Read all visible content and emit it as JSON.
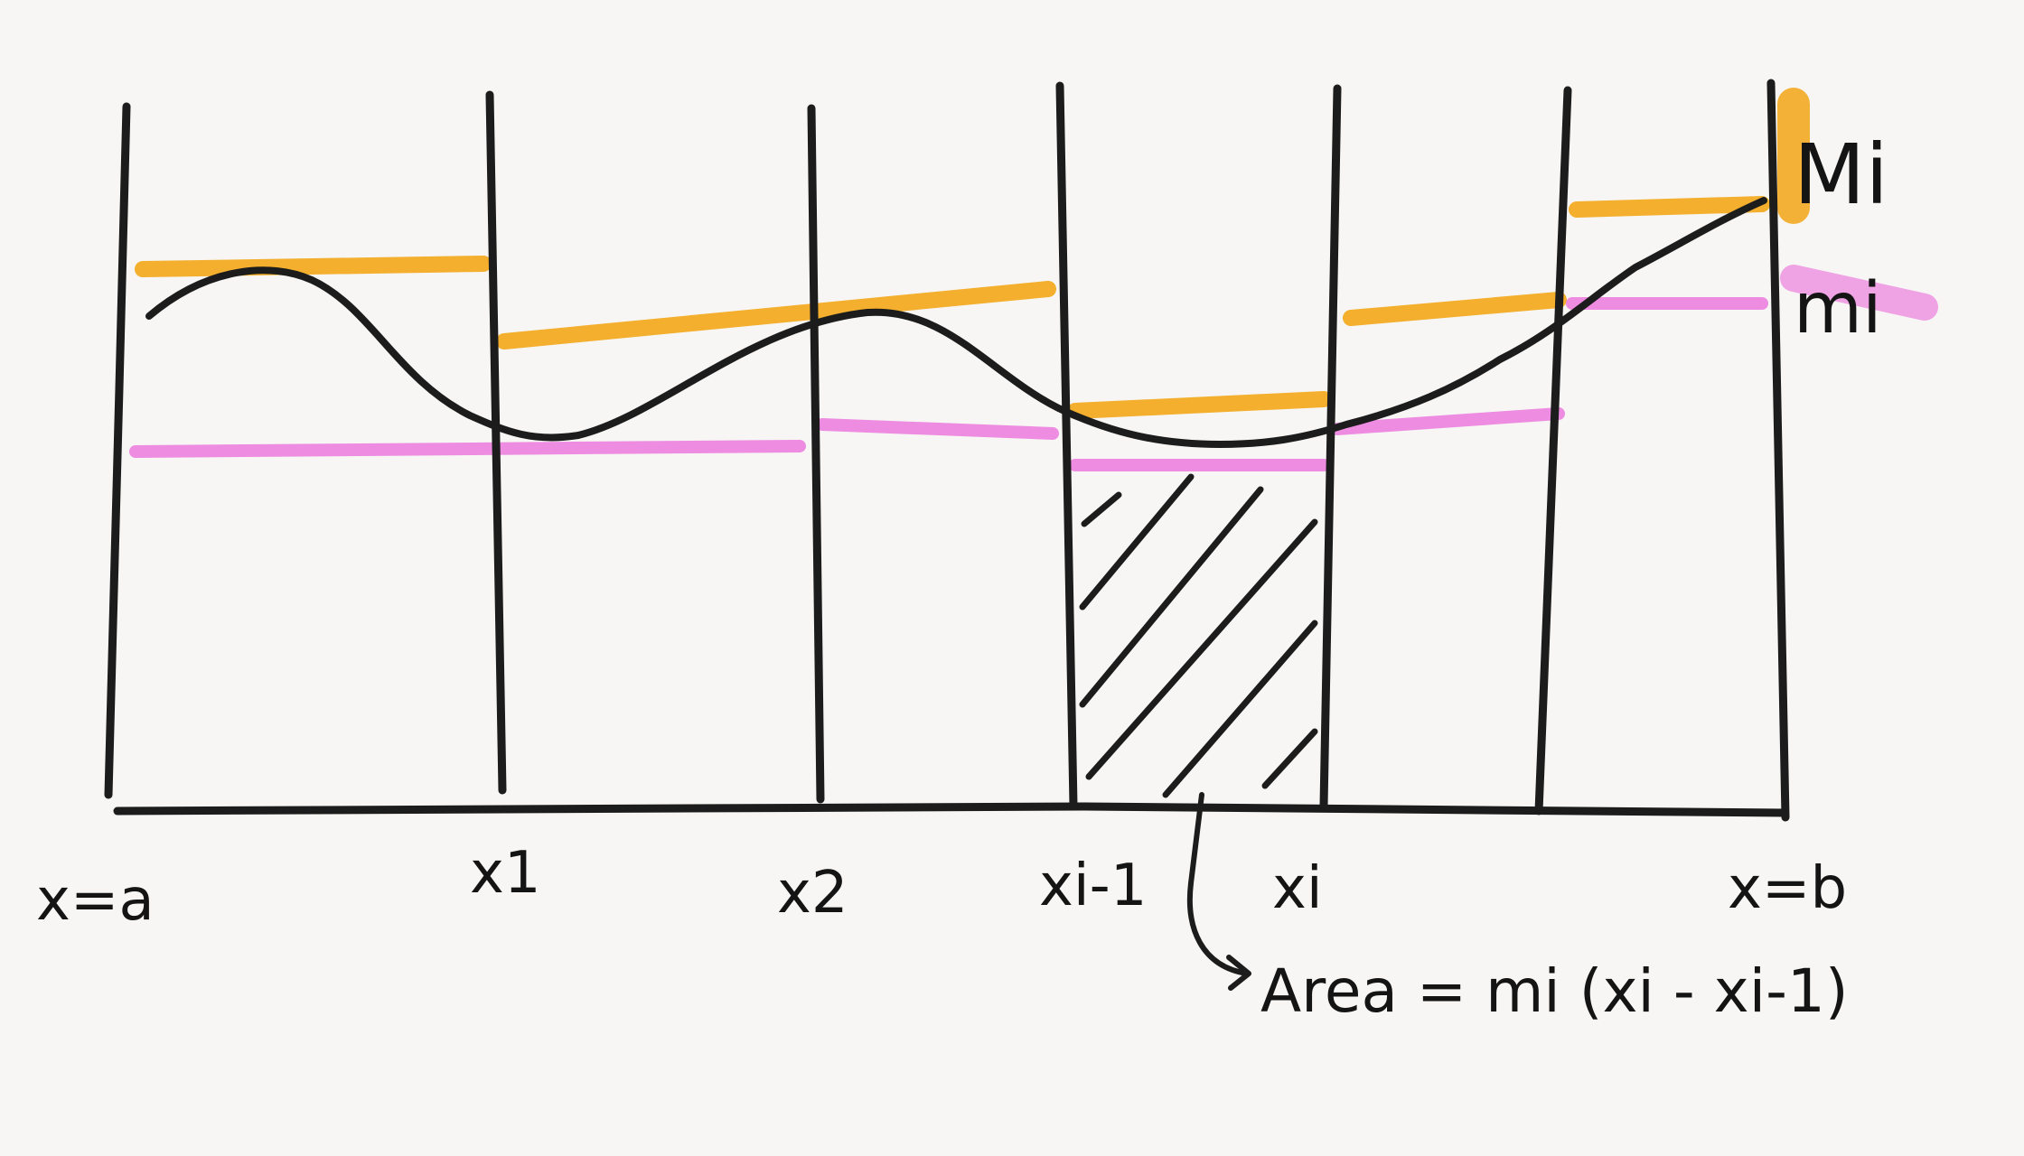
{
  "diagram": {
    "x_labels": {
      "a": "x=a",
      "x1": "x1",
      "x2": "x2",
      "xim1": "xi-1",
      "xi": "xi",
      "b": "x=b"
    },
    "legend": {
      "upper_sum_label": "Mi",
      "lower_sum_label": "mi"
    },
    "annotation": {
      "area_formula": "Area = mi (xi - xi-1)"
    },
    "colors": {
      "ink": "#1c1c1c",
      "upper_line": "#f2ab22",
      "lower_line": "#ec86df",
      "background": "#f7f6f4"
    }
  }
}
